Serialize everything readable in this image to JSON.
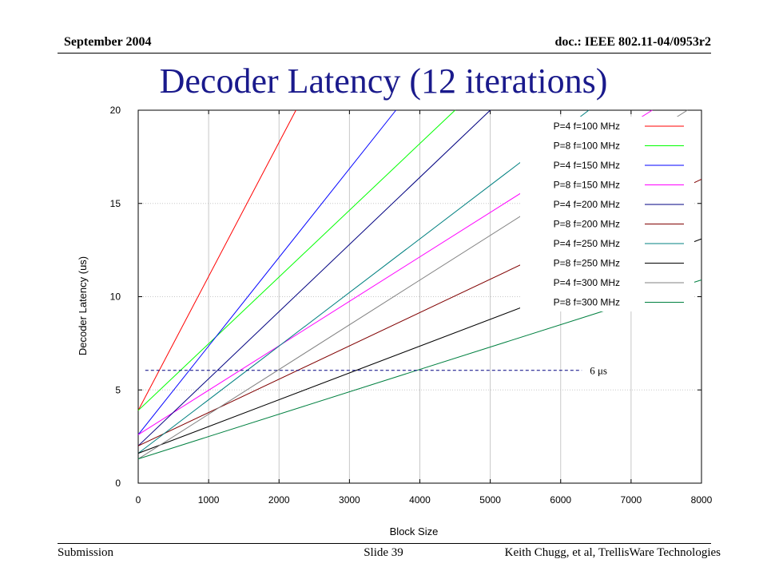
{
  "header": {
    "date": "September 2004",
    "doc": "doc.: IEEE 802.11-04/0953r2"
  },
  "slide_title": "Decoder Latency (12 iterations)",
  "footer": {
    "left": "Submission",
    "middle": "Slide 39",
    "right": "Keith Chugg, et al, TrellisWare  Technologies"
  },
  "chart_data": {
    "type": "line",
    "xlabel": "Block Size",
    "ylabel": "Decoder Latency (us)",
    "xlim": [
      0,
      8000
    ],
    "ylim": [
      0,
      20
    ],
    "xticks": [
      0,
      1000,
      2000,
      3000,
      4000,
      5000,
      6000,
      7000,
      8000
    ],
    "yticks": [
      0,
      5,
      10,
      15,
      20
    ],
    "grid": true,
    "legend_position": "top-right",
    "series": [
      {
        "name": "P=4 f=100 MHz",
        "color": "#ff0000",
        "x": [
          0,
          2240
        ],
        "y": [
          3.9,
          20
        ]
      },
      {
        "name": "P=8 f=100 MHz",
        "color": "#00ff00",
        "x": [
          0,
          4500
        ],
        "y": [
          3.9,
          20
        ]
      },
      {
        "name": "P=4 f=150 MHz",
        "color": "#0000ff",
        "x": [
          0,
          3660
        ],
        "y": [
          2.6,
          20
        ]
      },
      {
        "name": "P=8 f=150 MHz",
        "color": "#ff00ff",
        "x": [
          0,
          7300
        ],
        "y": [
          2.6,
          20
        ]
      },
      {
        "name": "P=4 f=200 MHz",
        "color": "#000080",
        "x": [
          0,
          5000
        ],
        "y": [
          2.0,
          20
        ]
      },
      {
        "name": "P=8 f=200 MHz",
        "color": "#800000",
        "x": [
          0,
          8000
        ],
        "y": [
          2.0,
          16.3
        ]
      },
      {
        "name": "P=4 f=250 MHz",
        "color": "#008080",
        "x": [
          0,
          6400
        ],
        "y": [
          1.6,
          20
        ]
      },
      {
        "name": "P=8 f=250 MHz",
        "color": "#000000",
        "x": [
          0,
          8000
        ],
        "y": [
          1.6,
          13.1
        ]
      },
      {
        "name": "P=4 f=300 MHz",
        "color": "#808080",
        "x": [
          0,
          7800
        ],
        "y": [
          1.3,
          20
        ]
      },
      {
        "name": "P=8 f=300 MHz",
        "color": "#008040",
        "x": [
          0,
          8000
        ],
        "y": [
          1.3,
          10.9
        ]
      }
    ],
    "annotations": [
      {
        "text": "6 μs",
        "kind": "dashed-hline",
        "y": 6.05,
        "x_start": 100,
        "x_end": 6300,
        "color": "#000080"
      }
    ]
  }
}
